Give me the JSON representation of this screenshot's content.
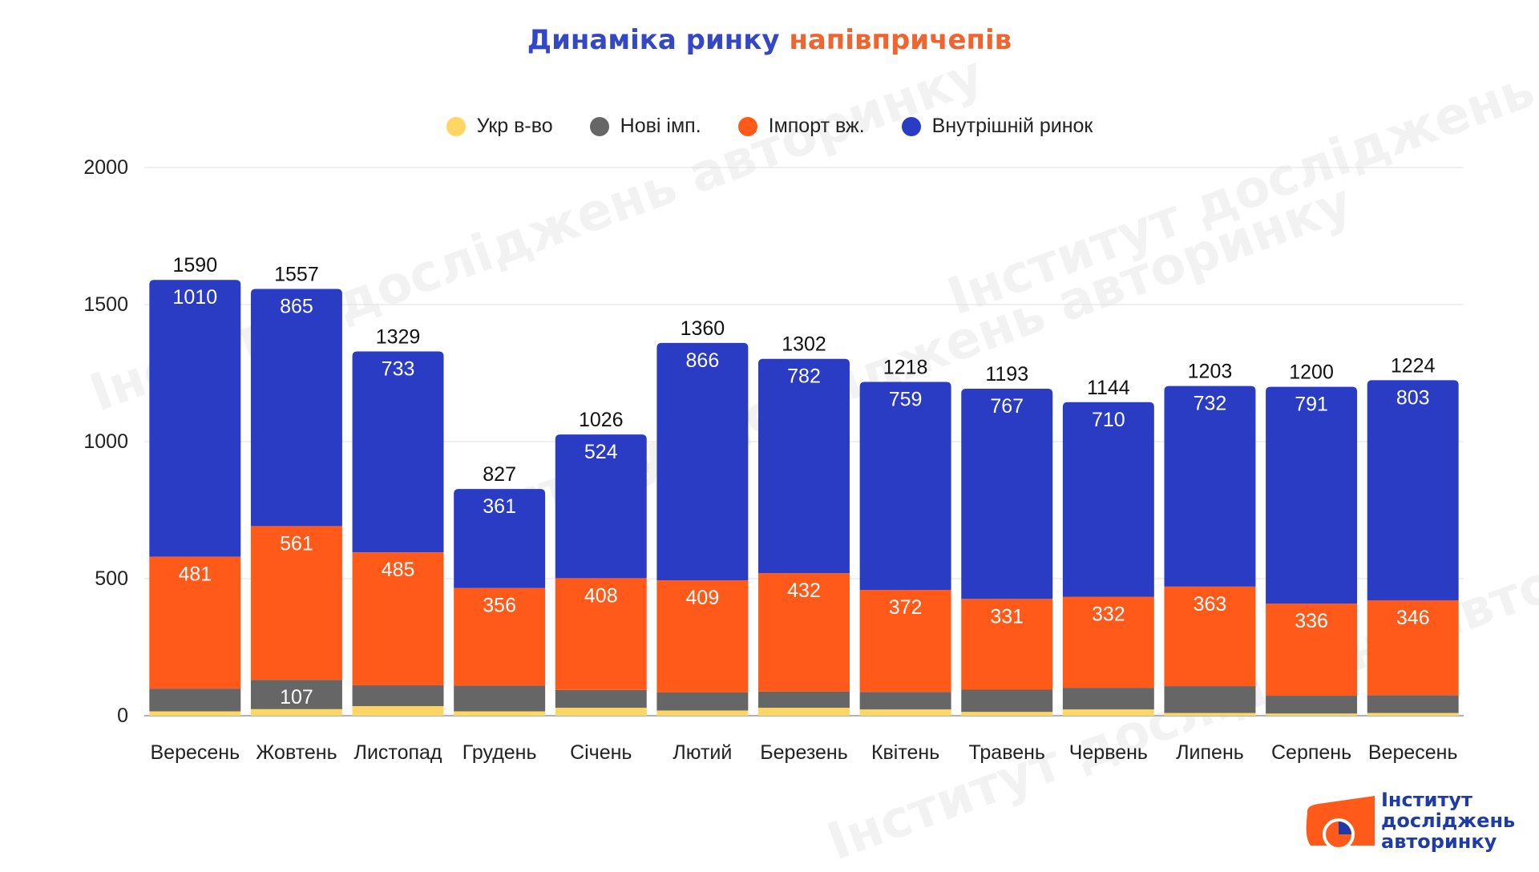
{
  "title": {
    "part1": "Динаміка ринку",
    "part2": "напівпричепів",
    "part1_color": "#3448c5",
    "part2_color": "#f0652f"
  },
  "logo": {
    "line1": "Інститут",
    "line2": "досліджень",
    "line3": "авторинку"
  },
  "watermark_text": "Інститут досліджень авторинку",
  "chart_data": {
    "type": "bar",
    "stacked": true,
    "title": "Динаміка ринку напівпричепів",
    "xlabel": "",
    "ylabel": "",
    "ylim": [
      0,
      2000
    ],
    "yticks": [
      0,
      500,
      1000,
      1500,
      2000
    ],
    "grid": true,
    "legend_position": "top-center",
    "categories": [
      "Вересень",
      "Жовтень",
      "Листопад",
      "Грудень",
      "Січень",
      "Лютий",
      "Березень",
      "Квітень",
      "Травень",
      "Червень",
      "Липень",
      "Серпень",
      "Вересень"
    ],
    "series": [
      {
        "name": "Укр в-во",
        "color": "#fdd663",
        "values": [
          16,
          24,
          35,
          16,
          29,
          19,
          29,
          23,
          14,
          23,
          10,
          8,
          10
        ],
        "show_labels": false
      },
      {
        "name": "Нові імп.",
        "color": "#666666",
        "values": [
          83,
          107,
          76,
          94,
          65,
          66,
          59,
          64,
          81,
          79,
          98,
          65,
          65
        ],
        "show_labels": [
          false,
          true,
          false,
          false,
          false,
          false,
          false,
          false,
          false,
          false,
          false,
          false,
          false
        ]
      },
      {
        "name": "Імпорт вж.",
        "color": "#ff5a1a",
        "values": [
          481,
          561,
          485,
          356,
          408,
          409,
          432,
          372,
          331,
          332,
          363,
          336,
          346
        ],
        "show_labels": true
      },
      {
        "name": "Внутрішній ринок",
        "color": "#2a3bc4",
        "values": [
          1010,
          865,
          733,
          361,
          524,
          866,
          782,
          759,
          767,
          710,
          732,
          791,
          803
        ],
        "show_labels": true
      }
    ],
    "totals": [
      1590,
      1557,
      1329,
      827,
      1026,
      1360,
      1302,
      1218,
      1193,
      1144,
      1203,
      1200,
      1224
    ]
  }
}
